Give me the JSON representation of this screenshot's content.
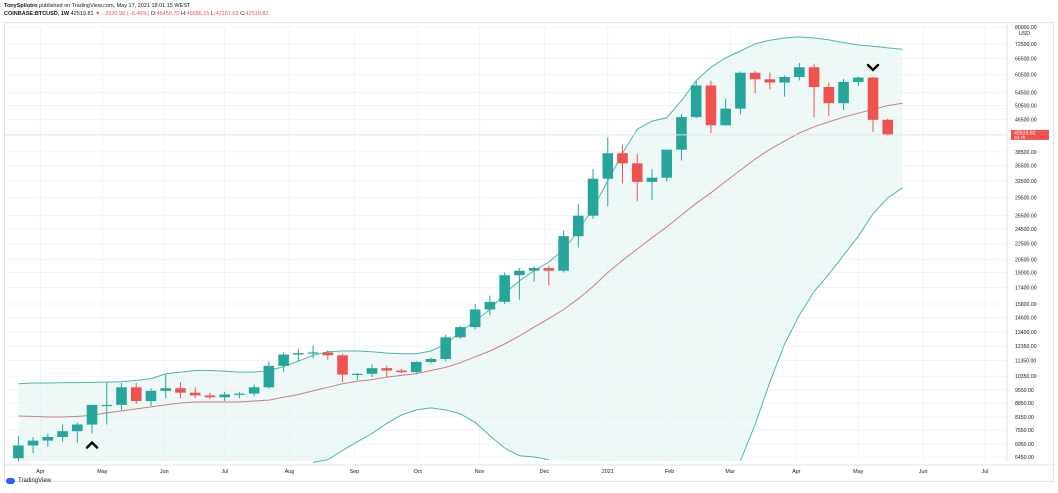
{
  "header": {
    "author": "TonySpilotro",
    "published": "published on TradingView.com, May 17, 2021 18:01:15 WEST",
    "symbol": "COINBASE:BTCUSD, 1W",
    "last": "42519.81",
    "change": "▼ −3930.98 (−8.46%)",
    "o_label": "O:",
    "o_value": "46450.70",
    "h_label": "H:",
    "h_value": "46686.15",
    "l_label": "L:",
    "l_value": "42167.69",
    "c_label": "C:",
    "c_value": "42519.82"
  },
  "footer": {
    "brand": "TradingView"
  },
  "colors": {
    "up": "#26a69a",
    "down": "#ef5350",
    "band": "#4db6ac",
    "mid": "#c87f7f",
    "fill": "#e0f2f1"
  },
  "chart_data": {
    "type": "candlestick",
    "price_axis_currency": "USD",
    "price_axis_title": "USD",
    "price_ticks": [
      {
        "label": "80000.00",
        "v": 80000
      },
      {
        "label": "72500.00",
        "v": 72500
      },
      {
        "label": "66500.00",
        "v": 66500
      },
      {
        "label": "60500.00",
        "v": 60500
      },
      {
        "label": "54500.00",
        "v": 54500
      },
      {
        "label": "50500.00",
        "v": 50500
      },
      {
        "label": "46500.00",
        "v": 46500
      },
      {
        "label": "38500.00",
        "v": 38500
      },
      {
        "label": "35500.00",
        "v": 35500
      },
      {
        "label": "32500.00",
        "v": 32500
      },
      {
        "label": "29500.00",
        "v": 29500
      },
      {
        "label": "26500.00",
        "v": 26500
      },
      {
        "label": "24500.00",
        "v": 24500
      },
      {
        "label": "22500.00",
        "v": 22500
      },
      {
        "label": "20500.00",
        "v": 20500
      },
      {
        "label": "19000.00",
        "v": 19000
      },
      {
        "label": "17400.00",
        "v": 17400
      },
      {
        "label": "15800.00",
        "v": 15800
      },
      {
        "label": "14600.00",
        "v": 14600
      },
      {
        "label": "13400.00",
        "v": 13400
      },
      {
        "label": "12350.00",
        "v": 12350
      },
      {
        "label": "11350.00",
        "v": 11350
      },
      {
        "label": "10350.00",
        "v": 10350
      },
      {
        "label": "9550.00",
        "v": 9550
      },
      {
        "label": "8850.00",
        "v": 8850
      },
      {
        "label": "8150.00",
        "v": 8150
      },
      {
        "label": "7550.00",
        "v": 7550
      },
      {
        "label": "6950.00",
        "v": 6950
      },
      {
        "label": "6450.00",
        "v": 6450
      }
    ],
    "price_range": [
      6300,
      80000
    ],
    "time_labels": [
      "Apr",
      "May",
      "Jun",
      "Jul",
      "Aug",
      "Sep",
      "Oct",
      "Nov",
      "Dec",
      "2021",
      "Feb",
      "Mar",
      "Apr",
      "May",
      "Jun",
      "Jul"
    ],
    "time_label_index": [
      1.5,
      5.7,
      9.9,
      14.0,
      18.4,
      22.8,
      27.1,
      31.3,
      35.7,
      40.0,
      44.2,
      48.3,
      52.8,
      57.0,
      61.4,
      65.6
    ],
    "total_slots": 68,
    "last_price_label": "42519.82",
    "last_price_sublabel": "3d 7h",
    "candles": [
      {
        "o": 6400,
        "h": 7300,
        "l": 6300,
        "c": 6900
      },
      {
        "o": 6900,
        "h": 7250,
        "l": 6600,
        "c": 7100
      },
      {
        "o": 7100,
        "h": 7400,
        "l": 6850,
        "c": 7250
      },
      {
        "o": 7250,
        "h": 7800,
        "l": 7050,
        "c": 7500
      },
      {
        "o": 7500,
        "h": 7900,
        "l": 7000,
        "c": 7800
      },
      {
        "o": 7800,
        "h": 8400,
        "l": 7400,
        "c": 8750
      },
      {
        "o": 8750,
        "h": 10000,
        "l": 7800,
        "c": 8750
      },
      {
        "o": 8750,
        "h": 9950,
        "l": 8500,
        "c": 9700
      },
      {
        "o": 9700,
        "h": 9950,
        "l": 8800,
        "c": 8950
      },
      {
        "o": 8950,
        "h": 9650,
        "l": 8700,
        "c": 9500
      },
      {
        "o": 9500,
        "h": 10450,
        "l": 9100,
        "c": 9650
      },
      {
        "o": 9650,
        "h": 10000,
        "l": 9100,
        "c": 9400
      },
      {
        "o": 9400,
        "h": 9700,
        "l": 9100,
        "c": 9250
      },
      {
        "o": 9250,
        "h": 9400,
        "l": 9050,
        "c": 9150
      },
      {
        "o": 9150,
        "h": 9450,
        "l": 8950,
        "c": 9300
      },
      {
        "o": 9300,
        "h": 9450,
        "l": 9100,
        "c": 9350
      },
      {
        "o": 9350,
        "h": 9850,
        "l": 9200,
        "c": 9700
      },
      {
        "o": 9700,
        "h": 11300,
        "l": 9600,
        "c": 11000
      },
      {
        "o": 11000,
        "h": 11900,
        "l": 10600,
        "c": 11750
      },
      {
        "o": 11750,
        "h": 12150,
        "l": 11300,
        "c": 11850
      },
      {
        "o": 11850,
        "h": 12400,
        "l": 11500,
        "c": 11900
      },
      {
        "o": 11900,
        "h": 12050,
        "l": 11400,
        "c": 11700
      },
      {
        "o": 11700,
        "h": 11800,
        "l": 10000,
        "c": 10450
      },
      {
        "o": 10450,
        "h": 10550,
        "l": 10100,
        "c": 10500
      },
      {
        "o": 10500,
        "h": 11100,
        "l": 10300,
        "c": 10850
      },
      {
        "o": 10850,
        "h": 11000,
        "l": 10300,
        "c": 10700
      },
      {
        "o": 10700,
        "h": 10800,
        "l": 10550,
        "c": 10600
      },
      {
        "o": 10600,
        "h": 11300,
        "l": 10500,
        "c": 11250
      },
      {
        "o": 11250,
        "h": 11550,
        "l": 11150,
        "c": 11450
      },
      {
        "o": 11450,
        "h": 13200,
        "l": 11300,
        "c": 13000
      },
      {
        "o": 13000,
        "h": 13900,
        "l": 12900,
        "c": 13800
      },
      {
        "o": 13800,
        "h": 15800,
        "l": 13600,
        "c": 15300
      },
      {
        "o": 15300,
        "h": 16600,
        "l": 14800,
        "c": 16000
      },
      {
        "o": 16000,
        "h": 19000,
        "l": 15800,
        "c": 18700
      },
      {
        "o": 18700,
        "h": 19500,
        "l": 16200,
        "c": 19200
      },
      {
        "o": 19200,
        "h": 19700,
        "l": 18000,
        "c": 19500
      },
      {
        "o": 19500,
        "h": 19800,
        "l": 17600,
        "c": 19200
      },
      {
        "o": 19200,
        "h": 24300,
        "l": 19000,
        "c": 23500
      },
      {
        "o": 23500,
        "h": 28400,
        "l": 22000,
        "c": 26500
      },
      {
        "o": 26500,
        "h": 34800,
        "l": 26000,
        "c": 32900
      },
      {
        "o": 32900,
        "h": 41900,
        "l": 28000,
        "c": 38200
      },
      {
        "o": 38200,
        "h": 40200,
        "l": 32000,
        "c": 36000
      },
      {
        "o": 36000,
        "h": 38000,
        "l": 28800,
        "c": 32300
      },
      {
        "o": 32300,
        "h": 34800,
        "l": 29000,
        "c": 33100
      },
      {
        "o": 33100,
        "h": 38800,
        "l": 32400,
        "c": 39000
      },
      {
        "o": 39000,
        "h": 48100,
        "l": 36600,
        "c": 47200
      },
      {
        "o": 47200,
        "h": 58300,
        "l": 46900,
        "c": 56800
      },
      {
        "o": 56800,
        "h": 58400,
        "l": 43000,
        "c": 45000
      },
      {
        "o": 45000,
        "h": 52600,
        "l": 44900,
        "c": 49600
      },
      {
        "o": 49600,
        "h": 61700,
        "l": 48000,
        "c": 61200
      },
      {
        "o": 61200,
        "h": 61800,
        "l": 54200,
        "c": 58900
      },
      {
        "o": 58900,
        "h": 61200,
        "l": 55500,
        "c": 57800
      },
      {
        "o": 57800,
        "h": 60200,
        "l": 53200,
        "c": 59700
      },
      {
        "o": 59700,
        "h": 64800,
        "l": 58500,
        "c": 63200
      },
      {
        "o": 63200,
        "h": 64500,
        "l": 47100,
        "c": 56300
      },
      {
        "o": 56300,
        "h": 57800,
        "l": 47500,
        "c": 51200
      },
      {
        "o": 51200,
        "h": 59000,
        "l": 49200,
        "c": 58000
      },
      {
        "o": 58000,
        "h": 59800,
        "l": 56600,
        "c": 59500
      },
      {
        "o": 59500,
        "h": 59700,
        "l": 43300,
        "c": 46450
      },
      {
        "o": 46450,
        "h": 46700,
        "l": 42200,
        "c": 42520
      }
    ],
    "bollinger_upper": [
      9900,
      9950,
      9950,
      9960,
      9970,
      9980,
      10000,
      10020,
      10100,
      10200,
      10500,
      10600,
      10700,
      10700,
      10650,
      10600,
      10600,
      10700,
      10950,
      11300,
      11700,
      11950,
      12000,
      12000,
      11950,
      11850,
      11800,
      11800,
      12000,
      12500,
      13400,
      14300,
      15300,
      16800,
      18100,
      19200,
      20200,
      21700,
      24300,
      27700,
      32500,
      38200,
      44000,
      46100,
      47000,
      52000,
      58500,
      63200,
      66800,
      69500,
      72500,
      74000,
      75000,
      75500,
      75000,
      74200,
      73000,
      72000,
      71500,
      70800,
      70200
    ],
    "bollinger_basis": [
      8200,
      8180,
      8150,
      8150,
      8180,
      8230,
      8350,
      8450,
      8550,
      8650,
      8750,
      8850,
      8900,
      8900,
      8900,
      8900,
      8950,
      9000,
      9150,
      9300,
      9500,
      9700,
      9900,
      10050,
      10150,
      10300,
      10400,
      10500,
      10700,
      10900,
      11200,
      11600,
      12000,
      12500,
      13100,
      13800,
      14500,
      15300,
      16300,
      17500,
      19000,
      20400,
      21800,
      23300,
      24800,
      26600,
      28500,
      30300,
      32400,
      34600,
      36900,
      39100,
      41000,
      43000,
      44600,
      45900,
      47200,
      48300,
      49400,
      50500,
      51200
    ],
    "bollinger_lower": [
      null,
      null,
      null,
      null,
      null,
      null,
      null,
      null,
      null,
      null,
      null,
      null,
      null,
      null,
      null,
      null,
      null,
      null,
      null,
      null,
      6250,
      6350,
      6700,
      7050,
      7400,
      7850,
      8250,
      8500,
      8600,
      8500,
      8300,
      7900,
      7300,
      6800,
      6500,
      6450,
      6350,
      6100,
      6000,
      5800,
      5800,
      5800,
      5800,
      5800,
      5800,
      5800,
      5800,
      5800,
      5800,
      6300,
      7800,
      10000,
      12500,
      14800,
      17000,
      18800,
      21000,
      23500,
      26800,
      29400,
      31200
    ]
  }
}
